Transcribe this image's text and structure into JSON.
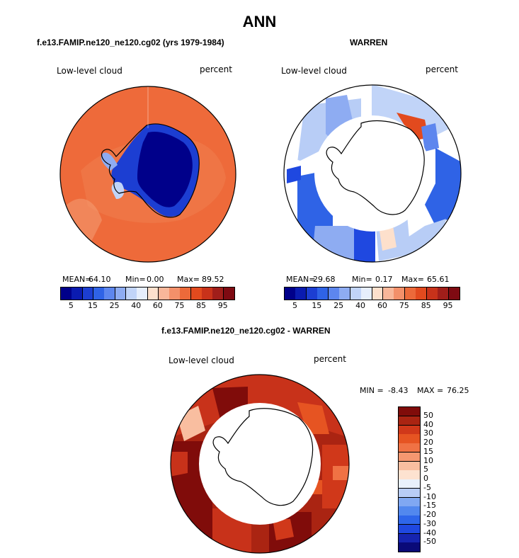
{
  "figure": {
    "title": "ANN",
    "colors": {
      "abs_scale": [
        "#00008a",
        "#0a1bb0",
        "#1c3ed2",
        "#2f63e6",
        "#5d86ee",
        "#8eacf2",
        "#c1d4f8",
        "#e6eefc",
        "#fde0cc",
        "#f8b79a",
        "#f3906a",
        "#ec6a3a",
        "#e24a1e",
        "#c8321a",
        "#a01e1a",
        "#7e0a12"
      ],
      "diff_scale": [
        "#0a0a78",
        "#1624b0",
        "#1f48e0",
        "#2e66ea",
        "#5288ee",
        "#80a8f2",
        "#b8cdf6",
        "#e9f1fb",
        "#fde2d0",
        "#f9bea0",
        "#f59770",
        "#f07244",
        "#e65422",
        "#d0381a",
        "#aa2412",
        "#800c0a"
      ]
    }
  },
  "panels": {
    "model": {
      "case_title": "f.e13.FAMIP.ne120_ne120.cg02 (yrs 1979-1984)",
      "variable": "Low-level cloud",
      "units": "percent",
      "mean_label": "MEAN=",
      "mean": "64.10",
      "min_label": "Min=",
      "min": "0.00",
      "max_label": "Max=",
      "max": "89.52",
      "colorbar_ticks": [
        "5",
        "15",
        "25",
        "40",
        "60",
        "75",
        "85",
        "95"
      ]
    },
    "obs": {
      "case_title": "WARREN",
      "variable": "Low-level cloud",
      "units": "percent",
      "mean_label": "MEAN=",
      "mean": "29.68",
      "min_label": "Min=",
      "min": "0.17",
      "max_label": "Max=",
      "max": "65.61",
      "colorbar_ticks": [
        "5",
        "15",
        "25",
        "40",
        "60",
        "75",
        "85",
        "95"
      ]
    },
    "diff": {
      "case_title": "f.e13.FAMIP.ne120_ne120.cg02 - WARREN",
      "variable": "Low-level cloud",
      "units": "percent",
      "min_label": "MIN =",
      "min": "-8.43",
      "max_label": "MAX =",
      "max": "76.25",
      "colorbar_ticks": [
        "50",
        "40",
        "30",
        "20",
        "15",
        "10",
        "5",
        "0",
        "-5",
        "-10",
        "-15",
        "-20",
        "-30",
        "-40",
        "-50"
      ]
    }
  }
}
